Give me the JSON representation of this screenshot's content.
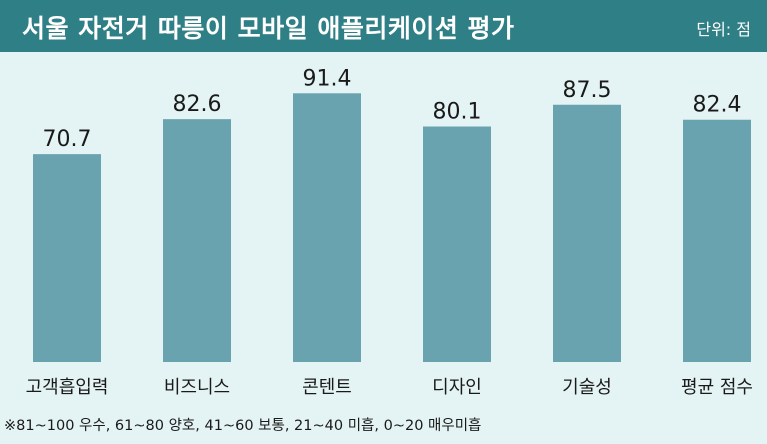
{
  "title": "서울 자전거 따릉이 모바일 애플리케이션 평가",
  "unit": "단위: 점",
  "footnote": "※81~100 우수, 61~80 양호, 41~60 보통, 21~40 미흡, 0~20 매우미흡",
  "colors": {
    "header": "#2f7f86",
    "bar": "#6aa3b0",
    "background": "#e4f3f3"
  },
  "chart_data": {
    "type": "bar",
    "categories": [
      "고객흡입력",
      "비즈니스",
      "콘텐트",
      "디자인",
      "기술성",
      "평균 점수"
    ],
    "values": [
      70.7,
      82.6,
      91.4,
      80.1,
      87.5,
      82.4
    ],
    "title": "서울 자전거 따릉이 모바일 애플리케이션 평가",
    "xlabel": "",
    "ylabel": "",
    "ylim": [
      0,
      100
    ],
    "grid": false,
    "value_labels": [
      "70.7",
      "82.6",
      "91.4",
      "80.1",
      "87.5",
      "82.4"
    ]
  }
}
